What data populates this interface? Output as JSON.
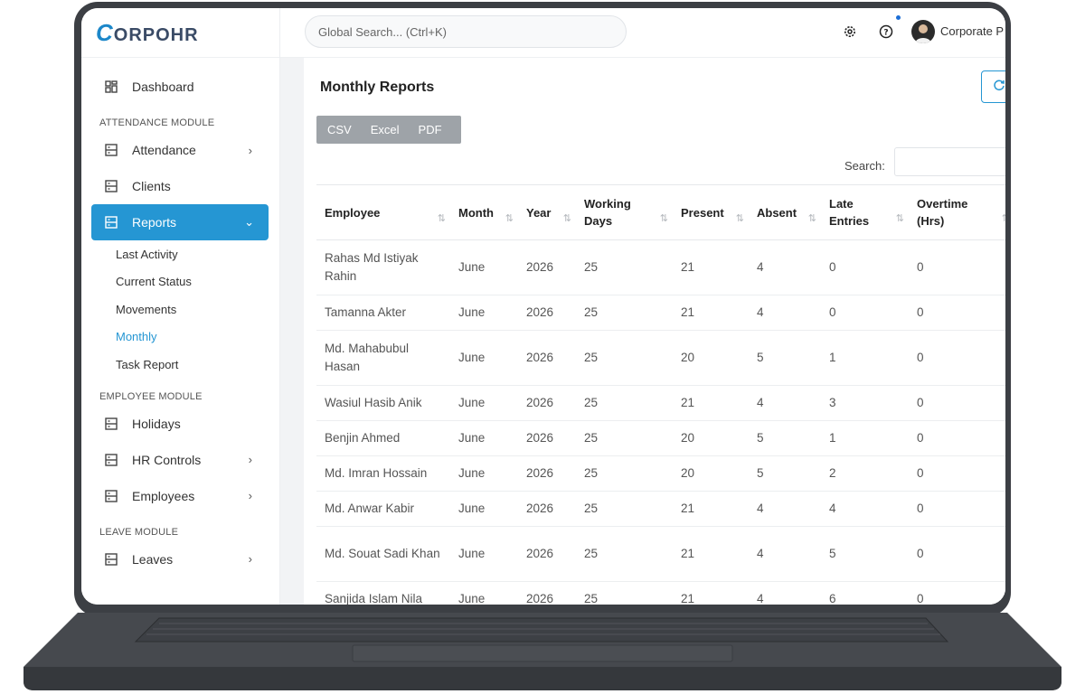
{
  "app": {
    "logo_initial": "C",
    "logo_rest": "ORPOHR"
  },
  "topbar": {
    "search_placeholder": "Global Search... (Ctrl+K)",
    "user_name": "Corporate P"
  },
  "sidebar": {
    "dashboard": "Dashboard",
    "section_attendance": "ATTENDANCE MODULE",
    "attendance": "Attendance",
    "clients": "Clients",
    "reports": "Reports",
    "report_items": [
      "Last Activity",
      "Current Status",
      "Movements",
      "Monthly",
      "Task Report"
    ],
    "section_employee": "EMPLOYEE MODULE",
    "holidays": "Holidays",
    "hr_controls": "HR Controls",
    "employees": "Employees",
    "section_leave": "LEAVE MODULE",
    "leaves": "Leaves"
  },
  "main": {
    "title": "Monthly Reports",
    "export_buttons": [
      "CSV",
      "Excel",
      "PDF"
    ],
    "search_label": "Search:"
  },
  "table": {
    "columns": [
      "Employee",
      "Month",
      "Year",
      "Working Days",
      "Present",
      "Absent",
      "Late Entries",
      "Overtime (Hrs)"
    ],
    "rows": [
      {
        "employee": "Rahas Md Istiyak Rahin",
        "month": "June",
        "year": "2026",
        "working_days": "25",
        "present": "21",
        "absent": "4",
        "late": "0",
        "overtime": "0"
      },
      {
        "employee": "Tamanna Akter",
        "month": "June",
        "year": "2026",
        "working_days": "25",
        "present": "21",
        "absent": "4",
        "late": "0",
        "overtime": "0"
      },
      {
        "employee": "Md. Mahabubul Hasan",
        "month": "June",
        "year": "2026",
        "working_days": "25",
        "present": "20",
        "absent": "5",
        "late": "1",
        "overtime": "0"
      },
      {
        "employee": "Wasiul Hasib Anik",
        "month": "June",
        "year": "2026",
        "working_days": "25",
        "present": "21",
        "absent": "4",
        "late": "3",
        "overtime": "0"
      },
      {
        "employee": "Benjin Ahmed",
        "month": "June",
        "year": "2026",
        "working_days": "25",
        "present": "20",
        "absent": "5",
        "late": "1",
        "overtime": "0"
      },
      {
        "employee": "Md. Imran Hossain",
        "month": "June",
        "year": "2026",
        "working_days": "25",
        "present": "20",
        "absent": "5",
        "late": "2",
        "overtime": "0"
      },
      {
        "employee": "Md. Anwar Kabir",
        "month": "June",
        "year": "2026",
        "working_days": "25",
        "present": "21",
        "absent": "4",
        "late": "4",
        "overtime": "0"
      },
      {
        "employee": "Md. Souat Sadi Khan",
        "month": "June",
        "year": "2026",
        "working_days": "25",
        "present": "21",
        "absent": "4",
        "late": "5",
        "overtime": "0"
      },
      {
        "employee": "Sanjida Islam Nila",
        "month": "June",
        "year": "2026",
        "working_days": "25",
        "present": "21",
        "absent": "4",
        "late": "6",
        "overtime": "0"
      }
    ]
  }
}
